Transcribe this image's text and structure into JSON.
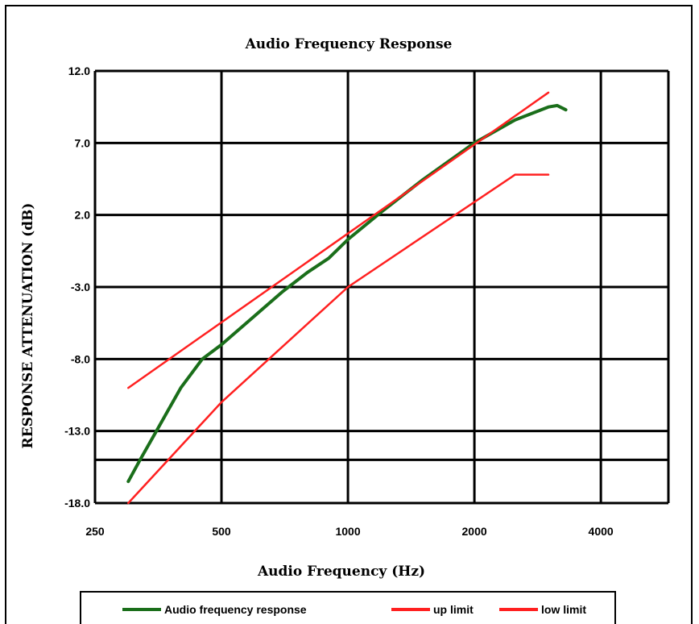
{
  "chart_data": {
    "type": "line",
    "title": "Audio Frequency Response",
    "xlabel": "Audio Frequency (Hz)",
    "ylabel": "RESPONSE ATTENUATION (dB)",
    "x_scale": "log2",
    "xlim": [
      250,
      5792
    ],
    "ylim": [
      -18,
      12
    ],
    "x_ticks": [
      250,
      500,
      1000,
      2000,
      4000
    ],
    "x_tick_labels": [
      "250",
      "500",
      "1000",
      "2000",
      "4000"
    ],
    "y_ticks": [
      12,
      7,
      2,
      -3,
      -8,
      -13,
      -18
    ],
    "y_tick_labels": [
      "12.0",
      "7.0",
      "2.0",
      "-3.0",
      "-8.0",
      "-13.0",
      "-18.0"
    ],
    "extra_hlines": [
      -15
    ],
    "grid": true,
    "legend_position": "bottom",
    "series": [
      {
        "name": "Audio frequency response",
        "color": "#1a6e1a",
        "x": [
          300,
          320,
          350,
          400,
          450,
          500,
          600,
          700,
          800,
          900,
          1000,
          1200,
          1500,
          2000,
          2500,
          3000,
          3150,
          3300
        ],
        "y": [
          -16.5,
          -15,
          -13,
          -10,
          -8,
          -7,
          -5,
          -3.3,
          -2,
          -1,
          0.3,
          2.2,
          4.4,
          7,
          8.6,
          9.5,
          9.6,
          9.3
        ]
      },
      {
        "name": "up limit",
        "color": "#ff2020",
        "x": [
          300,
          3000
        ],
        "y": [
          -10,
          10.5
        ]
      },
      {
        "name": "low limit",
        "color": "#ff2020",
        "x": [
          300,
          500,
          1000,
          2500,
          2500,
          3000
        ],
        "y": [
          -18,
          -11,
          -3,
          4.8,
          4.8,
          4.8
        ]
      }
    ]
  }
}
